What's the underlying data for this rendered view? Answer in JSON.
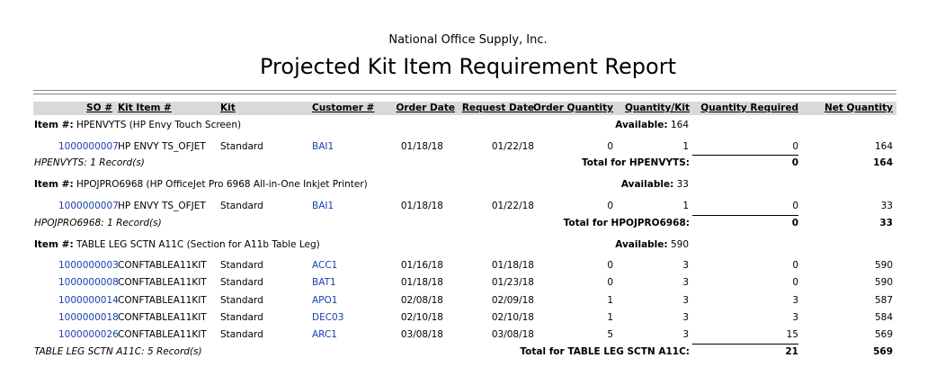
{
  "header": {
    "company": "National Office Supply, Inc.",
    "title": "Projected Kit Item Requirement Report"
  },
  "columns": [
    "SO #",
    "Kit Item #",
    "Kit",
    "Customer #",
    "Order Date",
    "Request Date",
    "Order Quantity",
    "Quantity/Kit",
    "Quantity Required",
    "Net Quantity"
  ],
  "groups": [
    {
      "item_label": "Item #:",
      "item": "HPENVYTS (HP Envy Touch Screen)",
      "available_label": "Available:",
      "available": "164",
      "rows": [
        [
          "1000000007",
          "HP ENVY TS_OFJET",
          "Standard",
          "BAI1",
          "01/18/18",
          "01/22/18",
          "0",
          "1",
          "0",
          "164"
        ]
      ],
      "record_count": "HPENVYTS: 1 Record(s)",
      "total_label": "Total for HPENVYTS:",
      "total_required": "0",
      "total_net": "164"
    },
    {
      "item_label": "Item #:",
      "item": "HPOJPRO6968 (HP OfficeJet Pro 6968 All-in-One Inkjet Printer)",
      "available_label": "Available:",
      "available": "33",
      "rows": [
        [
          "1000000007",
          "HP ENVY TS_OFJET",
          "Standard",
          "BAI1",
          "01/18/18",
          "01/22/18",
          "0",
          "1",
          "0",
          "33"
        ]
      ],
      "record_count": "HPOJPRO6968: 1 Record(s)",
      "total_label": "Total for HPOJPRO6968:",
      "total_required": "0",
      "total_net": "33"
    },
    {
      "item_label": "Item #:",
      "item": "TABLE LEG SCTN A11C (Section for A11b Table Leg)",
      "available_label": "Available:",
      "available": "590",
      "rows": [
        [
          "1000000003",
          "CONFTABLEA11KIT",
          "Standard",
          "ACC1",
          "01/16/18",
          "01/18/18",
          "0",
          "3",
          "0",
          "590"
        ],
        [
          "1000000008",
          "CONFTABLEA11KIT",
          "Standard",
          "BAT1",
          "01/18/18",
          "01/23/18",
          "0",
          "3",
          "0",
          "590"
        ],
        [
          "1000000014",
          "CONFTABLEA11KIT",
          "Standard",
          "APO1",
          "02/08/18",
          "02/09/18",
          "1",
          "3",
          "3",
          "587"
        ],
        [
          "1000000018",
          "CONFTABLEA11KIT",
          "Standard",
          "DEC03",
          "02/10/18",
          "02/10/18",
          "1",
          "3",
          "3",
          "584"
        ],
        [
          "1000000026",
          "CONFTABLEA11KIT",
          "Standard",
          "ARC1",
          "03/08/18",
          "03/08/18",
          "5",
          "3",
          "15",
          "569"
        ]
      ],
      "record_count": "TABLE LEG SCTN A11C: 5 Record(s)",
      "total_label": "Total for TABLE LEG SCTN A11C:",
      "total_required": "21",
      "total_net": "569"
    }
  ]
}
